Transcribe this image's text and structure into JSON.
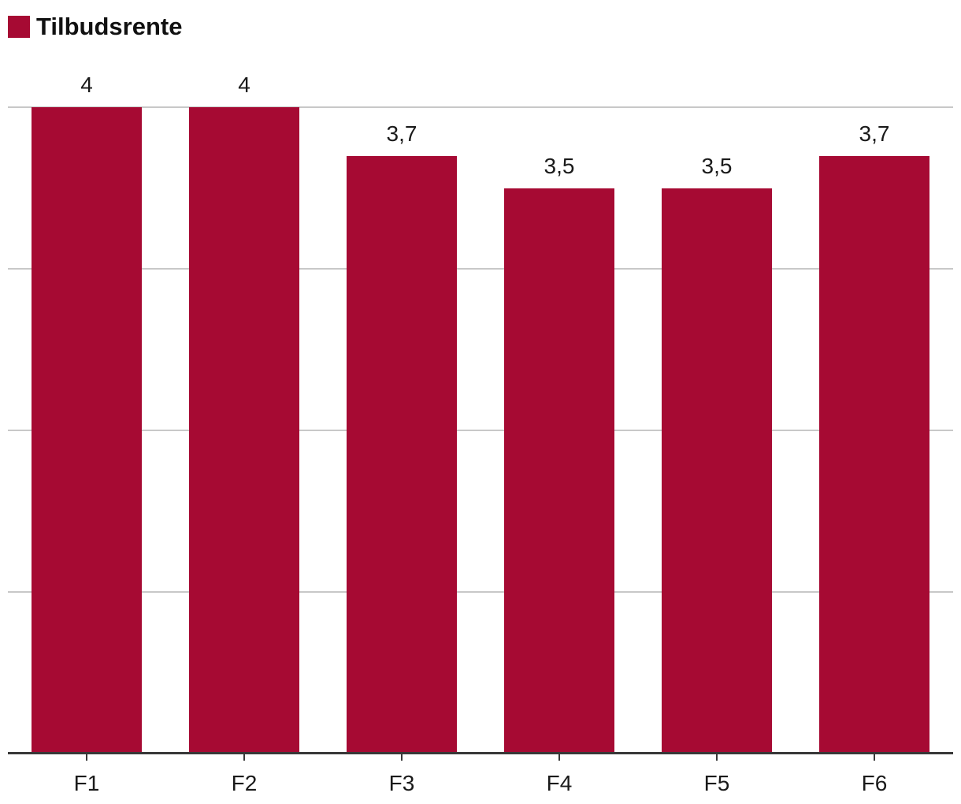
{
  "chart_data": {
    "type": "bar",
    "title": "",
    "legend_position": "top-left",
    "categories": [
      "F1",
      "F2",
      "F3",
      "F4",
      "F5",
      "F6"
    ],
    "series": [
      {
        "name": "Tilbudsrente",
        "color": "#A60A33",
        "values": [
          4,
          4,
          3.7,
          3.5,
          3.5,
          3.7
        ],
        "labels": [
          "4",
          "4",
          "3,7",
          "3,5",
          "3,5",
          "3,7"
        ]
      }
    ],
    "ylim": [
      0,
      4
    ],
    "gridlines": [
      1,
      2,
      3,
      4
    ],
    "grid_on": true,
    "grid_color": "#C8C8C8",
    "axis_color": "#383838",
    "text_color": "#1a1a1a",
    "decimal_separator": ","
  }
}
